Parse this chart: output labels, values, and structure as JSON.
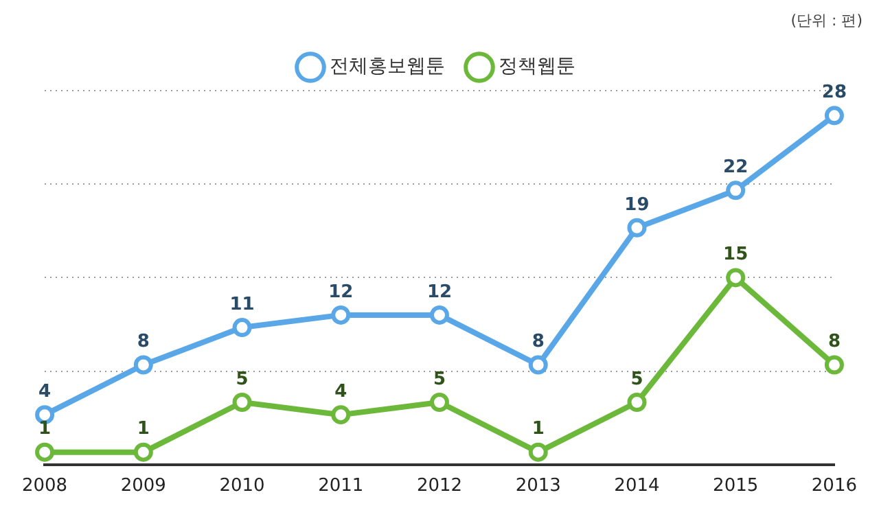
{
  "chart_data": {
    "type": "line",
    "categories": [
      "2008",
      "2009",
      "2010",
      "2011",
      "2012",
      "2013",
      "2014",
      "2015",
      "2016"
    ],
    "series": [
      {
        "name": "전체홍보웹툰",
        "color": "#5aa7e8",
        "values": [
          4,
          8,
          11,
          12,
          12,
          8,
          19,
          22,
          28
        ]
      },
      {
        "name": "정책웹툰",
        "color": "#6bb83a",
        "values": [
          1,
          1,
          5,
          4,
          5,
          1,
          5,
          15,
          8
        ]
      }
    ],
    "ylim": [
      0,
      30
    ],
    "yticks": [
      {
        "value": 7.5,
        "label": null
      },
      {
        "value": 15,
        "label": null
      },
      {
        "value": 22.5,
        "label": null
      },
      {
        "value": 30,
        "label": null
      }
    ],
    "tick_labels": "x",
    "grid": "y",
    "legend": "top",
    "marker": "circle",
    "line_style": "solid",
    "data_labels": true,
    "annotations": [
      "(단위 : 편)"
    ]
  }
}
